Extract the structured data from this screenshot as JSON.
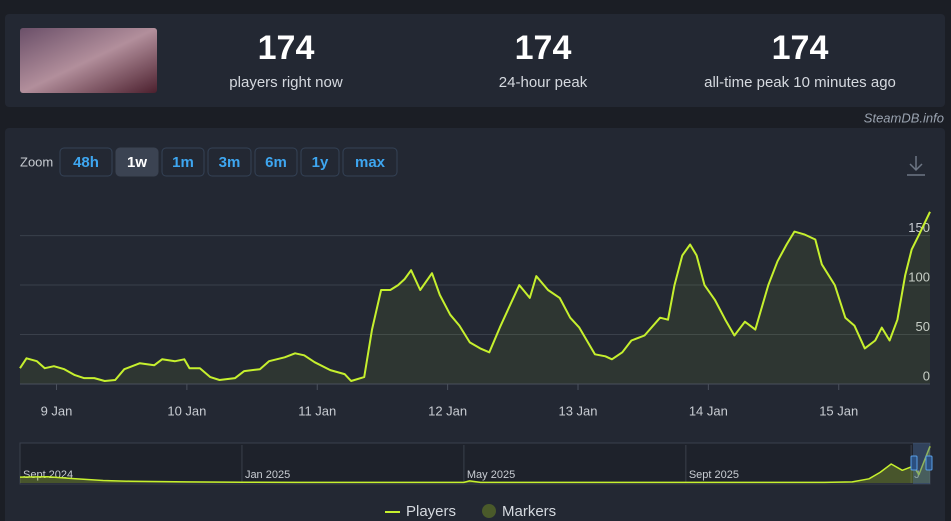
{
  "header": {
    "stats": [
      {
        "value": 174,
        "label": "players right now"
      },
      {
        "value": 174,
        "label": "24-hour peak"
      },
      {
        "value": 174,
        "label": "all-time peak 10 minutes ago"
      }
    ],
    "watermark": "SteamDB.info"
  },
  "zoom": {
    "label": "Zoom",
    "options": [
      "48h",
      "1w",
      "1m",
      "3m",
      "6m",
      "1y",
      "max"
    ],
    "active": 1
  },
  "chart_data": [
    {
      "type": "line",
      "xlim": [
        8.72,
        15.7
      ],
      "ylim": [
        0,
        190
      ],
      "xticks": [
        {
          "value": 9,
          "label": "9 Jan"
        },
        {
          "value": 10,
          "label": "10 Jan"
        },
        {
          "value": 11,
          "label": "11 Jan"
        },
        {
          "value": 12,
          "label": "12 Jan"
        },
        {
          "value": 13,
          "label": "13 Jan"
        },
        {
          "value": 14,
          "label": "14 Jan"
        },
        {
          "value": 15,
          "label": "15 Jan"
        }
      ],
      "yticks": [
        0,
        50,
        100,
        150
      ],
      "grid": true,
      "x": [
        8.72,
        8.77,
        8.85,
        8.91,
        8.98,
        9.06,
        9.14,
        9.21,
        9.29,
        9.37,
        9.45,
        9.52,
        9.64,
        9.75,
        9.81,
        9.91,
        9.98,
        10.02,
        10.1,
        10.18,
        10.25,
        10.37,
        10.44,
        10.56,
        10.63,
        10.75,
        10.83,
        10.9,
        10.98,
        11.1,
        11.21,
        11.26,
        11.36,
        11.42,
        11.49,
        11.56,
        11.62,
        11.67,
        11.72,
        11.79,
        11.88,
        11.94,
        12.02,
        12.09,
        12.17,
        12.25,
        12.32,
        12.4,
        12.48,
        12.55,
        12.63,
        12.68,
        12.77,
        12.86,
        12.94,
        13.01,
        13.13,
        13.21,
        13.26,
        13.34,
        13.41,
        13.51,
        13.63,
        13.69,
        13.74,
        13.8,
        13.86,
        13.91,
        13.97,
        14.05,
        14.13,
        14.2,
        14.28,
        14.36,
        14.46,
        14.53,
        14.6,
        14.66,
        14.74,
        14.82,
        14.87,
        14.97,
        15.05,
        15.12,
        15.2,
        15.28,
        15.33,
        15.39,
        15.45,
        15.51,
        15.56,
        15.62,
        15.7
      ],
      "series": [
        {
          "name": "Players",
          "color": "#c6f02e",
          "values": [
            16,
            26,
            23,
            16,
            18,
            15,
            9,
            6,
            6,
            3,
            4,
            15,
            21,
            19,
            25,
            23,
            25,
            16,
            16,
            7,
            4,
            6,
            13,
            15,
            23,
            27,
            31,
            29,
            22,
            14,
            10,
            3,
            7,
            55,
            95,
            95,
            100,
            106,
            115,
            95,
            112,
            90,
            70,
            59,
            42,
            36,
            32,
            57,
            80,
            100,
            87,
            109,
            95,
            87,
            67,
            57,
            30,
            28,
            25,
            32,
            44,
            49,
            67,
            65,
            100,
            130,
            141,
            130,
            100,
            85,
            65,
            49,
            63,
            55,
            100,
            124,
            141,
            154,
            151,
            146,
            121,
            100,
            67,
            59,
            36,
            44,
            57,
            44,
            65,
            110,
            136,
            152,
            174
          ]
        }
      ],
      "markers_label": "Markers"
    },
    {
      "type": "line",
      "xlim": [
        0,
        16.4
      ],
      "ylim": [
        0,
        180
      ],
      "xticks": [
        {
          "value": 0,
          "label": "Sept 2024"
        },
        {
          "value": 4,
          "label": "Jan 2025"
        },
        {
          "value": 8,
          "label": "May 2025"
        },
        {
          "value": 12,
          "label": "Sept 2025"
        },
        {
          "value": 16.06,
          "label": "J"
        }
      ],
      "x": [
        0,
        0.5,
        1,
        1.5,
        2,
        3,
        4,
        5,
        6,
        7,
        8,
        8.1,
        8.3,
        9,
        10,
        11,
        12,
        13,
        14,
        14.5,
        15,
        15.3,
        15.5,
        15.7,
        15.9,
        16.1,
        16.2,
        16.4
      ],
      "series": [
        {
          "name": "Players",
          "color": "#c6f02e",
          "values": [
            28,
            30,
            20,
            12,
            8,
            5,
            4,
            3,
            3,
            3,
            3,
            10,
            3,
            3,
            3,
            3,
            3,
            3,
            3,
            3,
            5,
            20,
            50,
            90,
            60,
            80,
            40,
            174
          ]
        }
      ]
    }
  ]
}
